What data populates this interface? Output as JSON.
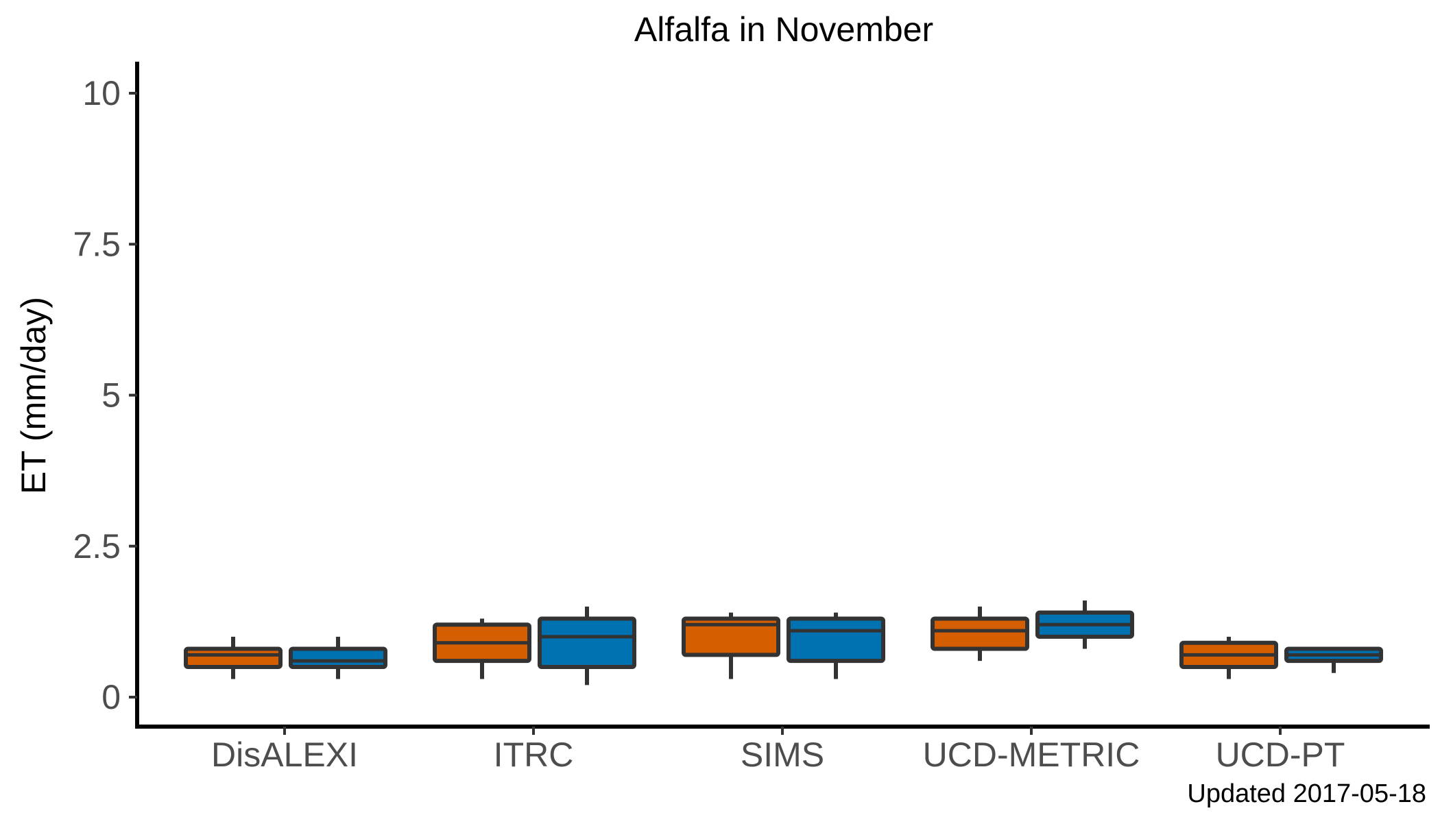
{
  "chart_data": {
    "type": "boxplot",
    "title": "Alfalfa in November",
    "xlabel": "",
    "ylabel": "ET (mm/day)",
    "ylim": [
      -0.5,
      10.5
    ],
    "yticks": [
      0,
      2.5,
      5,
      7.5,
      10
    ],
    "ytick_labels": [
      "0",
      "2.5",
      "5",
      "7.5",
      "10"
    ],
    "categories": [
      "DisALEXI",
      "ITRC",
      "SIMS",
      "UCD-METRIC",
      "UCD-PT"
    ],
    "grid": false,
    "legend": "none",
    "series": [
      {
        "color": "#D55E00",
        "boxes": [
          {
            "min": 0.3,
            "q1": 0.5,
            "median": 0.7,
            "q3": 0.8,
            "max": 1.0
          },
          {
            "min": 0.3,
            "q1": 0.6,
            "median": 0.9,
            "q3": 1.2,
            "max": 1.3
          },
          {
            "min": 0.3,
            "q1": 0.7,
            "median": 1.2,
            "q3": 1.3,
            "max": 1.4
          },
          {
            "min": 0.6,
            "q1": 0.8,
            "median": 1.1,
            "q3": 1.3,
            "max": 1.5
          },
          {
            "min": 0.3,
            "q1": 0.5,
            "median": 0.7,
            "q3": 0.9,
            "max": 1.0
          }
        ]
      },
      {
        "color": "#0072B2",
        "boxes": [
          {
            "min": 0.3,
            "q1": 0.5,
            "median": 0.6,
            "q3": 0.8,
            "max": 1.0
          },
          {
            "min": 0.2,
            "q1": 0.5,
            "median": 1.0,
            "q3": 1.3,
            "max": 1.5
          },
          {
            "min": 0.3,
            "q1": 0.6,
            "median": 1.1,
            "q3": 1.3,
            "max": 1.4
          },
          {
            "min": 0.8,
            "q1": 1.0,
            "median": 1.2,
            "q3": 1.4,
            "max": 1.6
          },
          {
            "min": 0.4,
            "q1": 0.6,
            "median": 0.7,
            "q3": 0.8,
            "max": 0.8
          }
        ]
      }
    ],
    "caption": "Updated  2017-05-18"
  }
}
